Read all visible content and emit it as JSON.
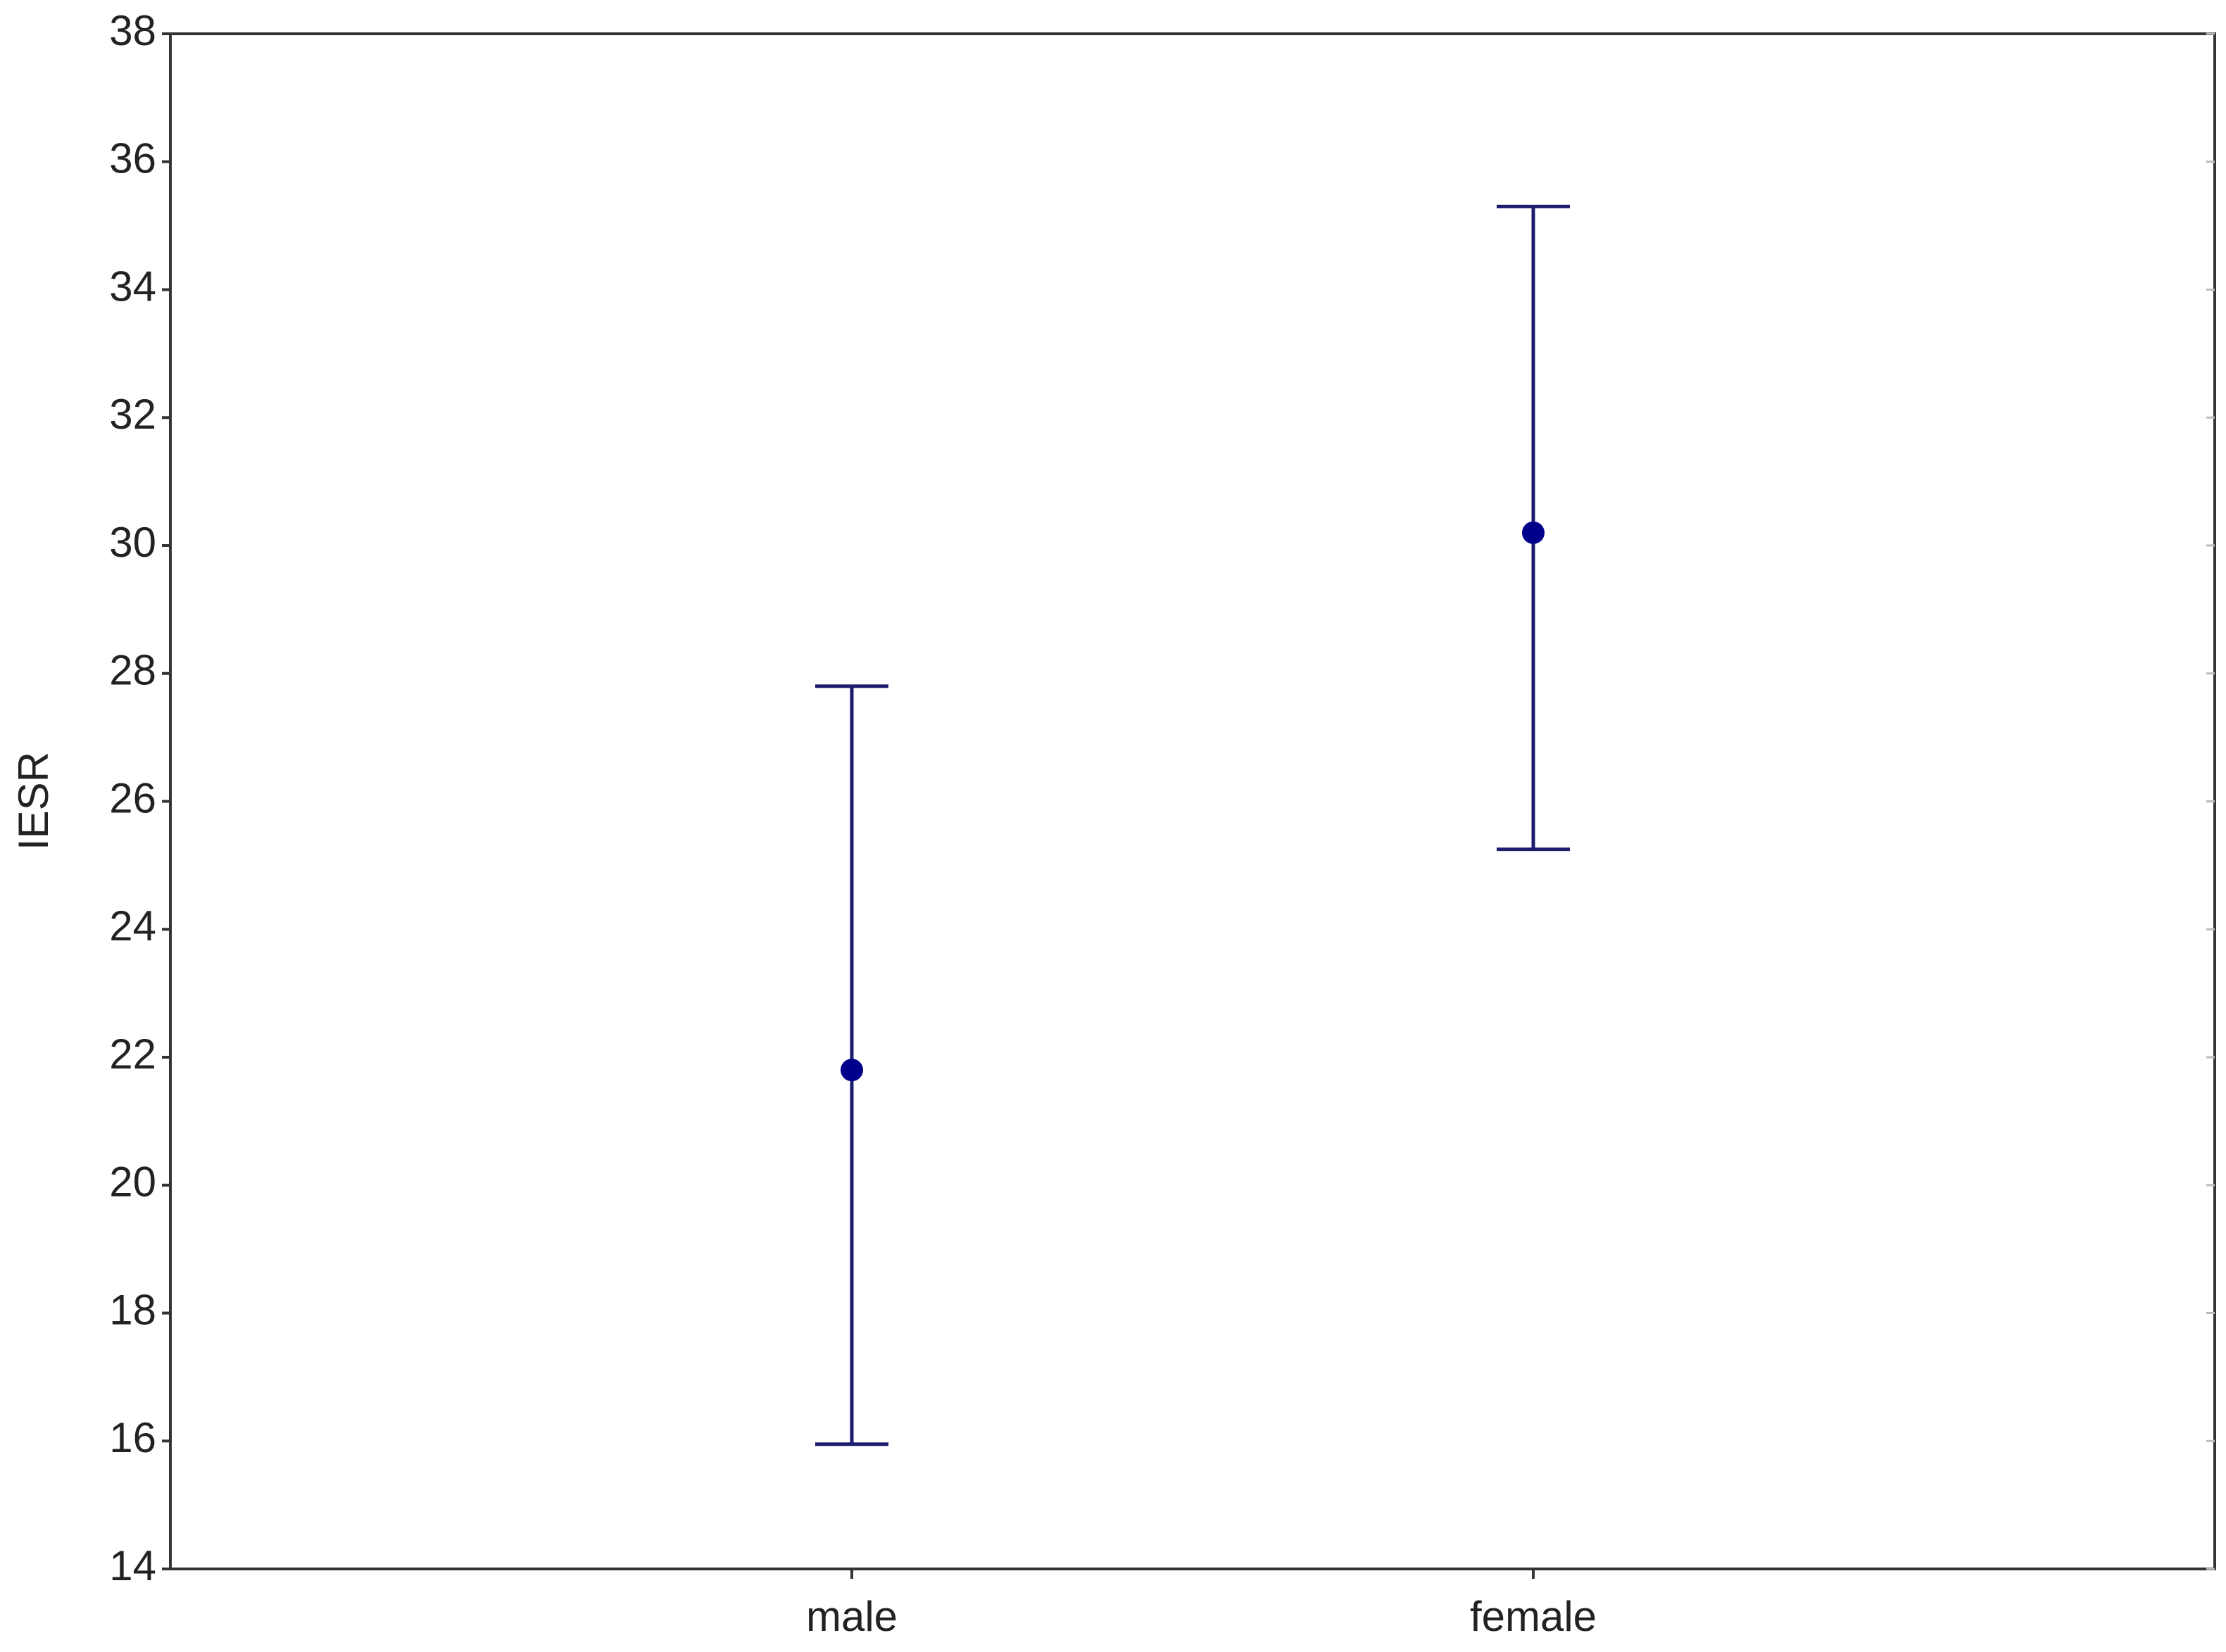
{
  "chart_data": {
    "type": "errorbar",
    "y_label": "IESR",
    "categories": [
      "male",
      "female"
    ],
    "values": [
      21.8,
      30.2
    ],
    "lower": [
      15.95,
      25.25
    ],
    "upper": [
      27.8,
      35.3
    ],
    "color": "#1c1c6e",
    "marker_color": "#00008b",
    "ylim": [
      14,
      38
    ],
    "yticks": [
      14,
      16,
      18,
      20,
      22,
      24,
      26,
      28,
      30,
      32,
      34,
      36,
      38
    ],
    "grid": false
  }
}
